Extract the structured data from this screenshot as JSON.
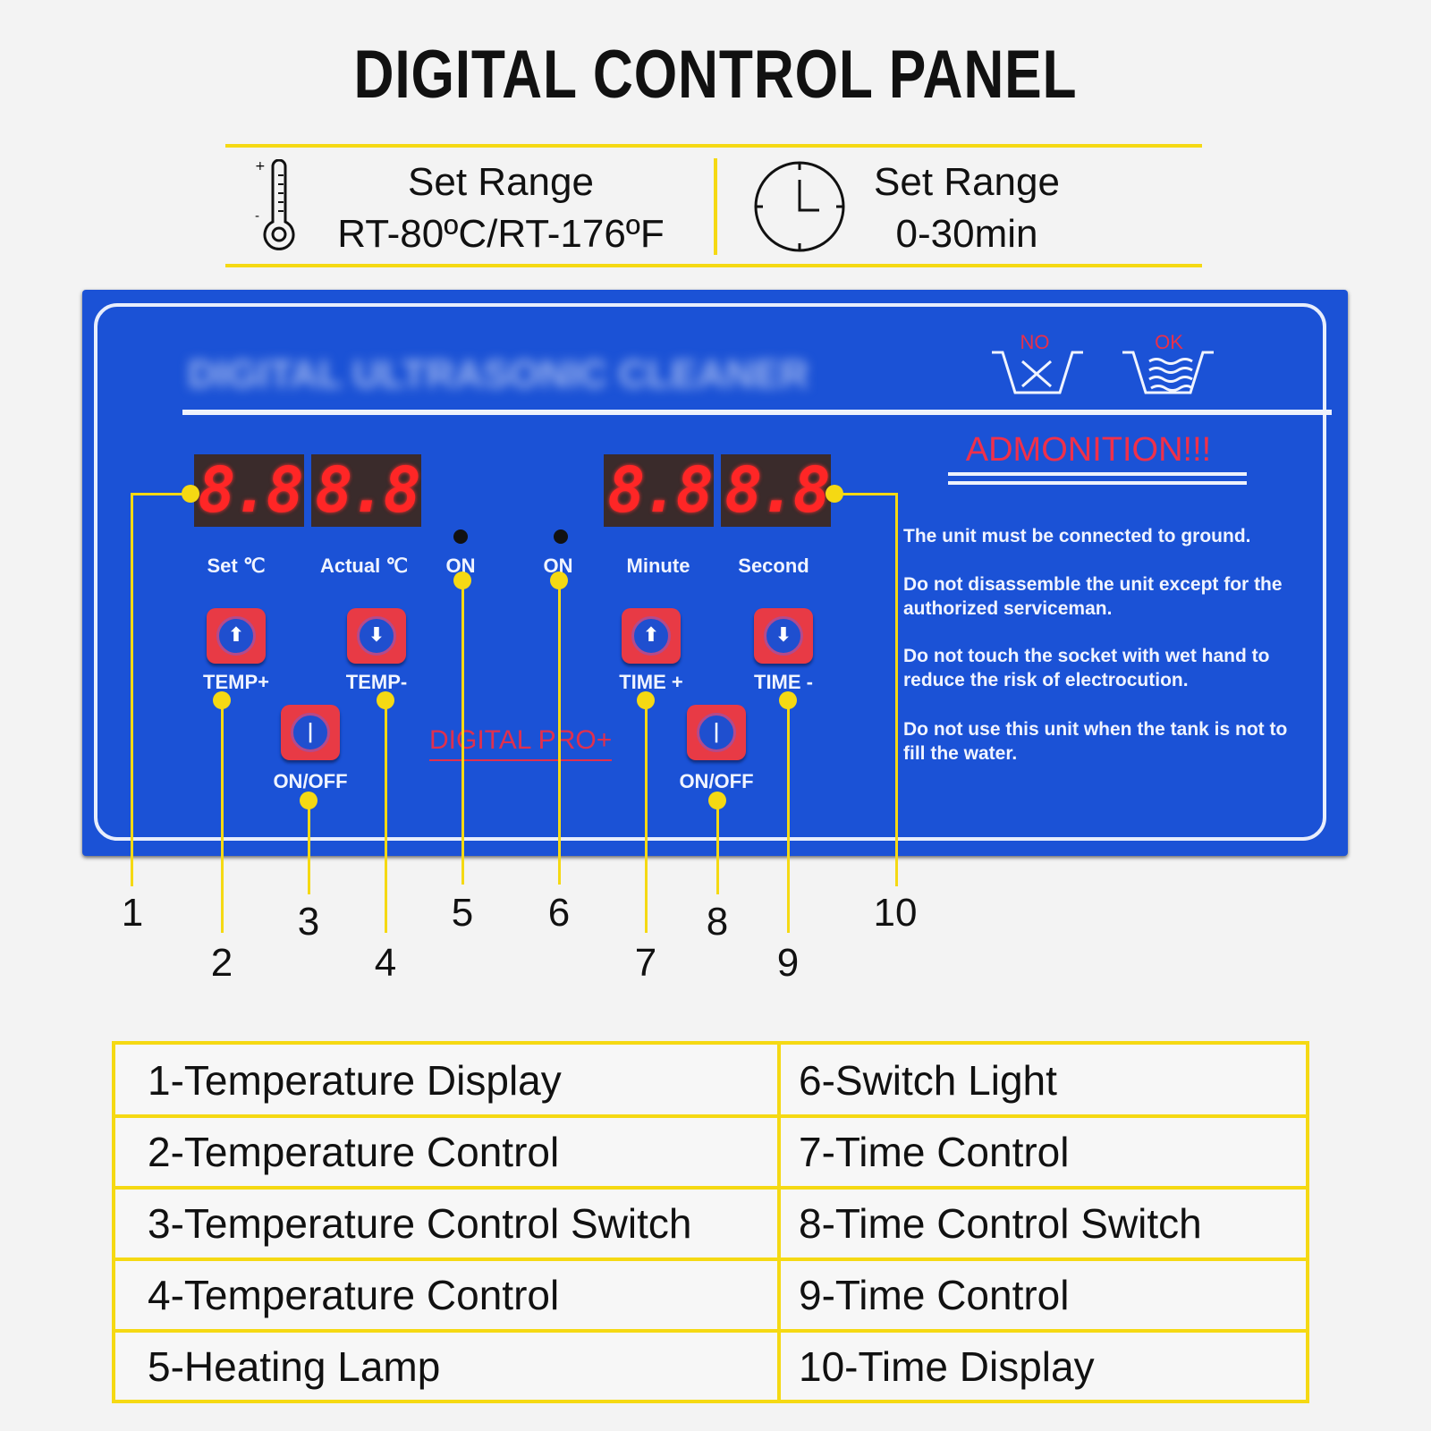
{
  "title": "DIGITAL CONTROL PANEL",
  "spec_temp": {
    "icon": "thermometer-icon",
    "line1": "Set Range",
    "line2": "RT-80ºC/RT-176ºF",
    "plus": "+",
    "minus": "-"
  },
  "spec_time": {
    "icon": "clock-icon",
    "line1": "Set Range",
    "line2": "0-30min"
  },
  "panel": {
    "device_title": "DIGITAL ULTRASONIC CLEANER",
    "displays": {
      "set": "8.8",
      "actual": "8.8",
      "minute": "8.8",
      "second": "8.8"
    },
    "labels": {
      "set": "Set  ℃",
      "actual": "Actual ℃",
      "on1": "ON",
      "on2": "ON",
      "minute": "Minute",
      "second": "Second"
    },
    "buttons": {
      "temp_plus": "TEMP+",
      "temp_minus": "TEMP-",
      "temp_onoff": "ON/OFF",
      "time_plus": "TIME +",
      "time_minus": "TIME -",
      "time_onoff": "ON/OFF"
    },
    "brand": "DIGITAL PRO+",
    "icons": {
      "no": "NO",
      "ok": "OK"
    },
    "admonition": "ADMONITION!!!",
    "warnings": [
      "The unit must be connected to ground.",
      "Do not disassemble the unit except for the authorized serviceman.",
      "Do not touch the socket with wet hand to reduce the risk of electrocution.",
      "Do not use this unit when the tank is not to fill the water."
    ]
  },
  "callouts": [
    "1",
    "2",
    "3",
    "4",
    "5",
    "6",
    "7",
    "8",
    "9",
    "10"
  ],
  "legend": [
    [
      "1-Temperature Display",
      "6-Switch Light"
    ],
    [
      "2-Temperature Control",
      "7-Time Control"
    ],
    [
      "3-Temperature Control Switch",
      "8-Time Control Switch"
    ],
    [
      "4-Temperature Control",
      "9-Time Control"
    ],
    [
      "5-Heating Lamp",
      "10-Time Display"
    ]
  ],
  "colors": {
    "panel": "#1b52d6",
    "accent": "#f5d913",
    "segment": "#ff2626",
    "button": "#e83a45"
  }
}
